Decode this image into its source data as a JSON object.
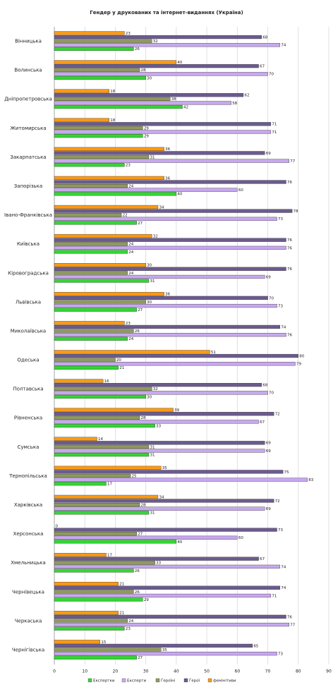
{
  "chart_data": {
    "type": "bar",
    "orientation": "horizontal",
    "title": "Гендер у друкованих та інтернет-виданнях (Україна)",
    "categories": [
      "Вінницька",
      "Волинська",
      "Дніпропетровська",
      "Житомирська",
      "Закарпатська",
      "Запорізька",
      "Івано-Франківська",
      "Київська",
      "Кіровоградська",
      "Львівська",
      "Миколаївська",
      "Одеська",
      "Полтавська",
      "Рівненська",
      "Сумська",
      "Тернопільська",
      "Харківська",
      "Херсонська",
      "Хмельницька",
      "Чернівецька",
      "Черкаська",
      "Чернігівська"
    ],
    "series": [
      {
        "name": "Експертки",
        "color": "#33d633",
        "values": [
          26,
          30,
          42,
          29,
          23,
          40,
          27,
          24,
          31,
          27,
          24,
          21,
          30,
          33,
          31,
          17,
          31,
          40,
          26,
          29,
          23,
          27
        ]
      },
      {
        "name": "Експерти",
        "color": "#c8a8f0",
        "values": [
          74,
          70,
          58,
          71,
          77,
          60,
          73,
          76,
          69,
          73,
          76,
          79,
          70,
          67,
          69,
          83,
          69,
          60,
          74,
          71,
          77,
          73
        ]
      },
      {
        "name": "Героїні",
        "color": "#8f9a5c",
        "values": [
          32,
          28,
          38,
          29,
          31,
          24,
          22,
          24,
          24,
          30,
          26,
          20,
          32,
          28,
          31,
          25,
          28,
          27,
          33,
          26,
          24,
          35
        ]
      },
      {
        "name": "Герої",
        "color": "#6b5b8e",
        "values": [
          68,
          67,
          62,
          71,
          69,
          76,
          78,
          76,
          76,
          70,
          74,
          80,
          68,
          72,
          69,
          75,
          72,
          73,
          67,
          74,
          76,
          65
        ]
      },
      {
        "name": "фемінітиви",
        "color": "#ff9a10",
        "values": [
          23,
          40,
          18,
          18,
          36,
          36,
          34,
          32,
          30,
          36,
          23,
          51,
          16,
          39,
          14,
          35,
          34,
          0,
          17,
          21,
          21,
          15
        ]
      }
    ],
    "xlim": [
      0,
      90
    ],
    "xticks": [
      0,
      10,
      20,
      30,
      40,
      50,
      60,
      70,
      80,
      90
    ],
    "grid": true,
    "legend": "bottom"
  }
}
